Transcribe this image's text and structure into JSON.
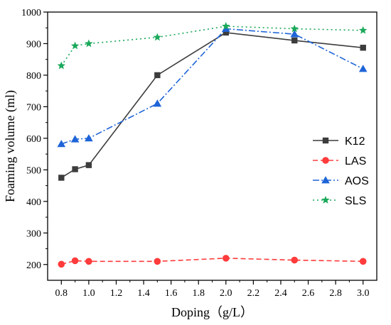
{
  "chart_data": {
    "type": "line",
    "xlabel": "Doping（g/L）",
    "ylabel": "Foaming volume (ml)",
    "xlim": [
      0.7,
      3.1
    ],
    "ylim": [
      150,
      1000
    ],
    "xticks": [
      "0.8",
      "1.0",
      "1.2",
      "1.4",
      "1.6",
      "1.8",
      "2.0",
      "2.2",
      "2.4",
      "2.6",
      "2.8",
      "3.0"
    ],
    "yticks": [
      "200",
      "300",
      "400",
      "500",
      "600",
      "700",
      "800",
      "900",
      "1000"
    ],
    "legend_position": "right",
    "grid": false,
    "series": [
      {
        "name": "K12",
        "color": "#3c3c3c",
        "marker": "square",
        "dash": "solid",
        "x": [
          0.8,
          0.9,
          1.0,
          1.5,
          2.0,
          2.5,
          3.0
        ],
        "y": [
          475,
          502,
          515,
          800,
          935,
          910,
          887
        ]
      },
      {
        "name": "LAS",
        "color": "#ff3b3b",
        "marker": "circle",
        "dash": "dash",
        "x": [
          0.8,
          0.9,
          1.0,
          1.5,
          2.0,
          2.5,
          3.0
        ],
        "y": [
          201,
          212,
          210,
          210,
          220,
          214,
          210
        ]
      },
      {
        "name": "AOS",
        "color": "#1e64d8",
        "marker": "triangle",
        "dash": "dashdot",
        "x": [
          0.8,
          0.9,
          1.0,
          1.5,
          2.0,
          2.5,
          3.0
        ],
        "y": [
          582,
          597,
          600,
          710,
          947,
          930,
          820
        ]
      },
      {
        "name": "SLS",
        "color": "#1aa85a",
        "marker": "star",
        "dash": "dot",
        "x": [
          0.8,
          0.9,
          1.0,
          1.5,
          2.0,
          2.5,
          3.0
        ],
        "y": [
          830,
          893,
          900,
          920,
          955,
          947,
          942
        ]
      }
    ]
  }
}
